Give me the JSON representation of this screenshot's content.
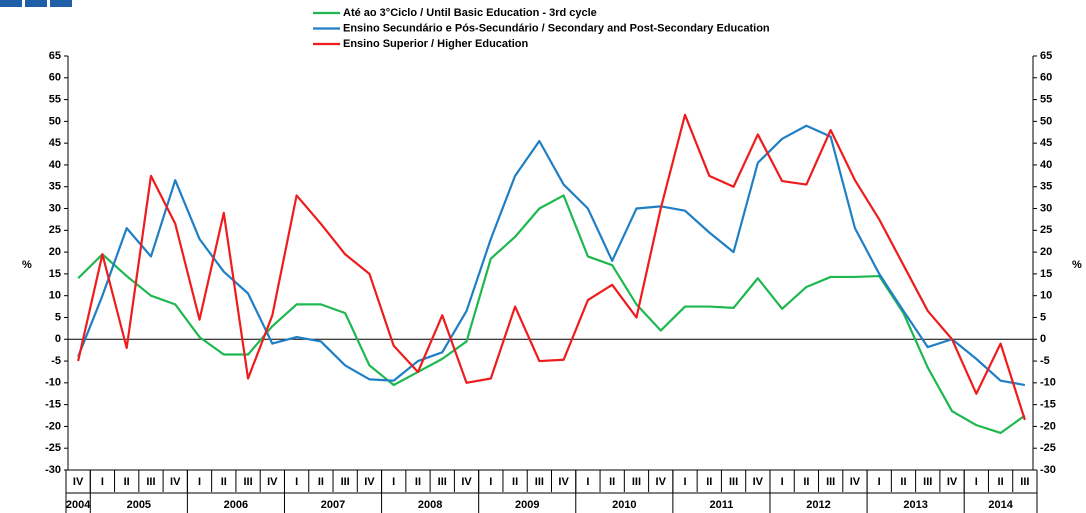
{
  "chart_data": {
    "type": "line",
    "y_label": "%",
    "categories": [
      "IV",
      "I",
      "II",
      "III",
      "IV",
      "I",
      "II",
      "III",
      "IV",
      "I",
      "II",
      "III",
      "IV",
      "I",
      "II",
      "III",
      "IV",
      "I",
      "II",
      "III",
      "IV",
      "I",
      "II",
      "III",
      "IV",
      "I",
      "II",
      "III",
      "IV",
      "I",
      "II",
      "III",
      "IV",
      "I",
      "II",
      "III",
      "IV",
      "I",
      "II",
      "III"
    ],
    "years": [
      "2004",
      "2005",
      "2006",
      "2007",
      "2008",
      "2009",
      "2010",
      "2011",
      "2012",
      "2013",
      "2014"
    ],
    "series": [
      {
        "name": "Até ao 3°Ciclo / Until Basic Education - 3rd cycle",
        "color": "#1fb850",
        "values": [
          14,
          19.5,
          14.5,
          10,
          8,
          0.5,
          -3.5,
          -3.5,
          3,
          8,
          8,
          6,
          -6,
          -10.5,
          -7.5,
          -4.5,
          -0.5,
          18.5,
          23.5,
          30,
          33,
          19,
          17,
          8,
          2,
          7.5,
          7.5,
          7.2,
          14,
          7,
          12,
          14.3,
          14.3,
          14.5,
          6,
          -6.5,
          -16.5,
          -19.7,
          -21.5,
          -17.5
        ]
      },
      {
        "name": "Ensino Secundário e Pós-Secundário / Secondary and Post-Secondary Education",
        "color": "#1f7fc4",
        "values": [
          -4,
          10,
          25.5,
          19,
          36.5,
          23,
          15.5,
          10.5,
          -1,
          0.5,
          -0.5,
          -6,
          -9.2,
          -9.5,
          -5,
          -3,
          6.5,
          23,
          37.5,
          45.5,
          35.5,
          30,
          18,
          30,
          30.5,
          29.5,
          24.5,
          20,
          40.5,
          46,
          49,
          46.5,
          25.5,
          15,
          6.5,
          -1.8,
          0,
          -4.5,
          -9.5,
          -10.5
        ]
      },
      {
        "name": "Ensino Superior / Higher Education",
        "color": "#ee1c1c",
        "values": [
          -5,
          19.5,
          -2,
          37.5,
          26.5,
          4.5,
          29,
          -9,
          5.5,
          33,
          26.5,
          19.5,
          15,
          -1.5,
          -7.5,
          5.5,
          -10,
          -9,
          7.5,
          -5,
          -4.7,
          9,
          12.5,
          5,
          30,
          51.5,
          37.5,
          35,
          47,
          36.3,
          35.5,
          48,
          36.5,
          27.5,
          17,
          6.5,
          0,
          -12.5,
          -1,
          -18.5
        ]
      }
    ],
    "ylim": [
      -30,
      65
    ],
    "yticks": [
      -30,
      -25,
      -20,
      -15,
      -10,
      -5,
      0,
      5,
      10,
      15,
      20,
      25,
      30,
      35,
      40,
      45,
      50,
      55,
      60,
      65
    ],
    "grid": false
  }
}
